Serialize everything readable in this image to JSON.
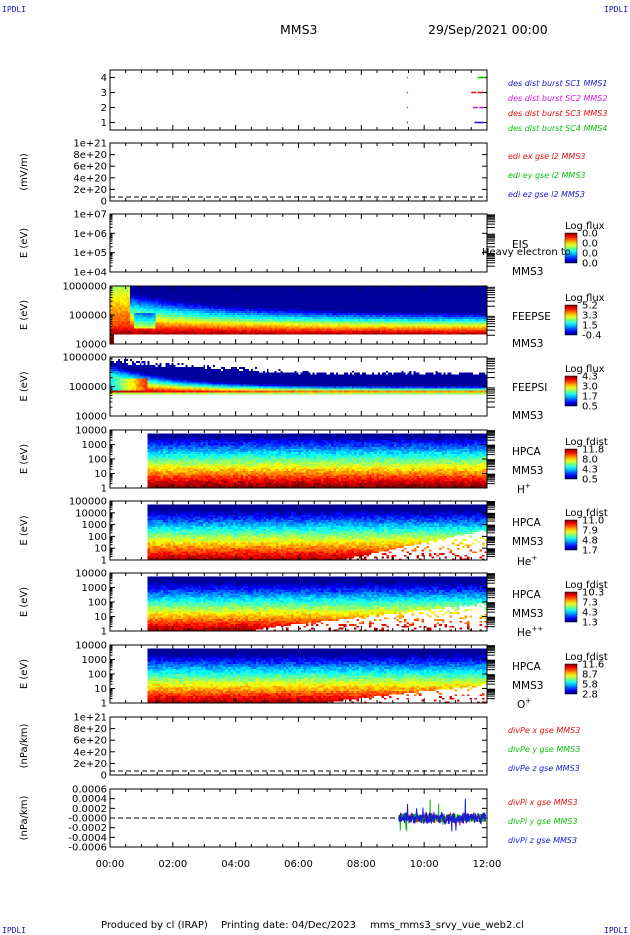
{
  "corners": {
    "tl": "IPDLI",
    "tr": "IPDLI",
    "bl": "IPDLI",
    "br": "IPDLI"
  },
  "header": {
    "spacecraft": "MMS3",
    "date": "29/Sep/2021 00:00"
  },
  "footer": {
    "producer": "Produced by cl (IRAP)",
    "printing": "Printing date: 04/Dec/2023",
    "file": "mms_mms3_srvy_vue_web2.cl"
  },
  "chart_data": [
    {
      "id": "burst",
      "type": "scatter",
      "ylim": [
        0.5,
        4.5
      ],
      "yticks": [
        "4",
        "3",
        "2",
        "1"
      ],
      "legend": [
        {
          "text": "des dist burst SC1 MMS1",
          "color": "#1a1ad0"
        },
        {
          "text": "des dist burst SC2 MMS2",
          "color": "#d81ad8"
        },
        {
          "text": "des dist burst SC3 MMS3",
          "color": "#e01010"
        },
        {
          "text": "des dist burst SC4 MMS4",
          "color": "#10c010"
        }
      ],
      "marks": [
        {
          "sc": 4,
          "t": [
            9.45,
            11.7,
            11.8
          ]
        },
        {
          "sc": 3,
          "t": [
            9.45,
            11.5,
            11.7
          ]
        },
        {
          "sc": 2,
          "t": [
            9.45,
            11.55,
            11.75
          ]
        },
        {
          "sc": 1,
          "t": [
            9.45,
            11.6,
            11.75
          ]
        }
      ]
    },
    {
      "id": "edi",
      "type": "line",
      "ylabel": "(mV/m)",
      "ylim": [
        -5e+19,
        1.2e+21
      ],
      "yticks": [
        "1e+21",
        "8e+20",
        "6e+20",
        "4e+20",
        "2e+20",
        "0"
      ],
      "legend": [
        {
          "text": "edi ex gse l2 MMS3",
          "color": "#e01010"
        },
        {
          "text": "edi ey gse l2 MMS3",
          "color": "#10c010"
        },
        {
          "text": "edi ez gse l2 MMS3",
          "color": "#1a1ad0"
        }
      ]
    },
    {
      "id": "eis",
      "type": "heatmap",
      "ylabel": "E (eV)",
      "yticks": [
        "1e+07",
        "1e+06",
        "1e+05",
        "1e+04"
      ],
      "inst": "EIS",
      "sc": "MMS3",
      "overlay": "Heavy electron to",
      "cb_title": "Log flux",
      "cb_labels": [
        "0.0",
        "0.0",
        "0.0",
        "0.0"
      ]
    },
    {
      "id": "feepse",
      "type": "heatmap",
      "ylabel": "E (eV)",
      "yticks": [
        "1000000",
        "100000",
        "10000"
      ],
      "inst": "FEEPSE",
      "sc": "MMS3",
      "cb_title": "Log flux",
      "cb_labels": [
        "5.2",
        "3.3",
        "1.5",
        "-0.4"
      ]
    },
    {
      "id": "feepsi",
      "type": "heatmap",
      "ylabel": "E (eV)",
      "yticks": [
        "1000000",
        "100000",
        "10000"
      ],
      "inst": "FEEPSI",
      "sc": "MMS3",
      "cb_title": "Log flux",
      "cb_labels": [
        "4.3",
        "3.0",
        "1.7",
        "0.5"
      ]
    },
    {
      "id": "hpca_h",
      "type": "heatmap",
      "ylabel": "E (eV)",
      "yticks": [
        "10000",
        "1000",
        "100",
        "10",
        "1"
      ],
      "inst": "HPCA",
      "sc": "MMS3",
      "species": "H",
      "charge": "+",
      "cb_title": "Log fdist",
      "cb_labels": [
        "11.8",
        "8.0",
        "4.3",
        "0.5"
      ]
    },
    {
      "id": "hpca_he",
      "type": "heatmap",
      "ylabel": "E (eV)",
      "yticks": [
        "100000",
        "10000",
        "1000",
        "100",
        "10",
        "1"
      ],
      "inst": "HPCA",
      "sc": "MMS3",
      "species": "He",
      "charge": "+",
      "cb_title": "Log fdist",
      "cb_labels": [
        "11.0",
        "7.9",
        "4.8",
        "1.7"
      ]
    },
    {
      "id": "hpca_he2",
      "type": "heatmap",
      "ylabel": "E (eV)",
      "yticks": [
        "10000",
        "1000",
        "100",
        "10",
        "1"
      ],
      "inst": "HPCA",
      "sc": "MMS3",
      "species": "He",
      "charge": "++",
      "cb_title": "Log fdist",
      "cb_labels": [
        "10.3",
        "7.3",
        "4.3",
        "1.3"
      ]
    },
    {
      "id": "hpca_o",
      "type": "heatmap",
      "ylabel": "E (eV)",
      "yticks": [
        "10000",
        "1000",
        "100",
        "10",
        "1"
      ],
      "inst": "HPCA",
      "sc": "MMS3",
      "species": "O",
      "charge": "+",
      "cb_title": "Log fdist",
      "cb_labels": [
        "11.6",
        "8.7",
        "5.8",
        "2.8"
      ]
    },
    {
      "id": "divpe",
      "type": "line",
      "ylabel": "(nPa/km)",
      "ylim": [
        -5e+19,
        1.2e+21
      ],
      "yticks": [
        "1e+21",
        "8e+20",
        "6e+20",
        "4e+20",
        "2e+20",
        "0"
      ],
      "legend": [
        {
          "text": "divPe x gse MMS3",
          "color": "#e01010"
        },
        {
          "text": "divPe y gse MMS3",
          "color": "#10c010"
        },
        {
          "text": "divPe z gse MMS3",
          "color": "#1a1ad0"
        }
      ]
    },
    {
      "id": "divpi",
      "type": "line",
      "ylabel": "(nPa/km)",
      "ylim": [
        -0.0007,
        0.0007
      ],
      "yticks": [
        "0.0006",
        "0.0004",
        "0.0002",
        "-0.0000",
        "-0.0002",
        "-0.0004",
        "-0.0006"
      ],
      "legend": [
        {
          "text": "divPi x gse MMS3",
          "color": "#e01010"
        },
        {
          "text": "divPi y gse MMS3",
          "color": "#10c010"
        },
        {
          "text": "divPi z gse MMS3",
          "color": "#1a1ad0"
        }
      ],
      "data_start_hour": 9.2
    }
  ],
  "time_axis": {
    "xlim": [
      0,
      12
    ],
    "ticks": [
      "00:00",
      "02:00",
      "04:00",
      "06:00",
      "08:00",
      "10:00",
      "12:00"
    ]
  }
}
